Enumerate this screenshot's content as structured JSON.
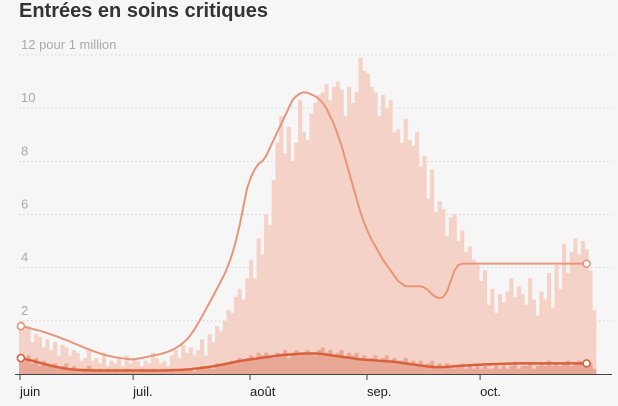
{
  "title": "Entrées en soins critiques",
  "chart_data": {
    "type": "bar",
    "title": "Entrées en soins critiques",
    "ylabel": "pour 1 million",
    "ylim": [
      0,
      12
    ],
    "yticks": [
      {
        "value": 2,
        "label": "2"
      },
      {
        "value": 4,
        "label": "4"
      },
      {
        "value": 6,
        "label": "6"
      },
      {
        "value": 8,
        "label": "8"
      },
      {
        "value": 10,
        "label": "10"
      },
      {
        "value": 12,
        "label": "12 pour 1 million"
      }
    ],
    "xticks": [
      {
        "label": "juin",
        "day": 0
      },
      {
        "label": "juil.",
        "day": 30
      },
      {
        "label": "août",
        "day": 61
      },
      {
        "label": "sep.",
        "day": 92
      },
      {
        "label": "oct.",
        "day": 122
      }
    ],
    "days": 153,
    "series": [
      {
        "name": "",
        "color": "#f5d2c7",
        "values": [
          2.0,
          1.7,
          1.8,
          1.2,
          1.5,
          1.4,
          1.0,
          1.3,
          0.9,
          1.2,
          0.7,
          1.1,
          1.0,
          0.7,
          0.9,
          0.8,
          0.5,
          0.6,
          0.9,
          0.5,
          0.6,
          0.4,
          0.8,
          0.3,
          0.5,
          0.4,
          0.6,
          0.3,
          0.7,
          0.4,
          0.6,
          0.5,
          0.3,
          0.5,
          0.4,
          0.8,
          0.6,
          0.4,
          0.5,
          0.3,
          0.7,
          0.9,
          0.6,
          1.1,
          0.8,
          1.0,
          0.7,
          0.9,
          1.3,
          0.7,
          1.5,
          1.2,
          1.8,
          1.6,
          2.0,
          2.4,
          2.3,
          2.9,
          3.2,
          2.8,
          3.6,
          4.3,
          3.6,
          5.1,
          4.5,
          6.0,
          5.6,
          7.3,
          8.7,
          9.7,
          8.3,
          9.3,
          8.0,
          8.7,
          10.3,
          9.1,
          8.8,
          9.8,
          10.2,
          10.5,
          10.6,
          10.9,
          10.3,
          10.8,
          11.0,
          10.7,
          9.7,
          10.8,
          10.2,
          10.6,
          11.9,
          11.4,
          11.3,
          10.8,
          10.6,
          9.7,
          10.5,
          10.0,
          10.3,
          9.1,
          9.2,
          8.7,
          9.6,
          8.8,
          8.6,
          9.1,
          7.8,
          8.2,
          6.6,
          7.7,
          6.1,
          6.5,
          6.2,
          5.2,
          5.9,
          6.0,
          5.0,
          5.4,
          4.6,
          4.8,
          4.3,
          4.1,
          3.5,
          3.9,
          2.6,
          3.2,
          2.3,
          3.0,
          2.7,
          3.1,
          3.6,
          2.9,
          3.3,
          3.0,
          2.6,
          3.6,
          2.8,
          2.2,
          3.1,
          2.8,
          3.8,
          2.5,
          4.1,
          3.2,
          4.9,
          3.8,
          4.6,
          5.1,
          4.5,
          5.0,
          4.7,
          3.9,
          2.4
        ],
        "trend": [
          1.8,
          1.77,
          1.73,
          1.7,
          1.66,
          1.63,
          1.58,
          1.54,
          1.49,
          1.44,
          1.39,
          1.33,
          1.28,
          1.22,
          1.16,
          1.1,
          1.04,
          0.98,
          0.93,
          0.87,
          0.82,
          0.77,
          0.73,
          0.69,
          0.66,
          0.63,
          0.61,
          0.59,
          0.57,
          0.55,
          0.55,
          0.58,
          0.6,
          0.63,
          0.66,
          0.69,
          0.72,
          0.75,
          0.79,
          0.84,
          0.9,
          0.97,
          1.06,
          1.17,
          1.3,
          1.47,
          1.67,
          1.91,
          2.16,
          2.42,
          2.68,
          2.94,
          3.21,
          3.48,
          3.76,
          4.1,
          4.5,
          5.0,
          5.6,
          6.3,
          7.0,
          7.4,
          7.7,
          7.9,
          8.0,
          8.2,
          8.5,
          8.8,
          9.1,
          9.4,
          9.7,
          10.0,
          10.3,
          10.45,
          10.55,
          10.6,
          10.58,
          10.52,
          10.45,
          10.35,
          10.2,
          10.0,
          9.7,
          9.4,
          9.0,
          8.6,
          8.1,
          7.6,
          7.1,
          6.6,
          6.1,
          5.7,
          5.35,
          5.05,
          4.8,
          4.55,
          4.3,
          4.1,
          3.9,
          3.7,
          3.5,
          3.4,
          3.3,
          3.3,
          3.3,
          3.3,
          3.3,
          3.25,
          3.15,
          3.0,
          2.9,
          2.85,
          2.9,
          3.1,
          3.5,
          3.9,
          4.1,
          4.15,
          4.15,
          4.15,
          4.15,
          4.15,
          4.15,
          4.15,
          4.15,
          4.15,
          4.15,
          4.15,
          4.15,
          4.15,
          4.15,
          4.15,
          4.15,
          4.15,
          4.15,
          4.15,
          4.15,
          4.15,
          4.15,
          4.15,
          4.15,
          4.15,
          4.15,
          4.15,
          4.15,
          4.15,
          4.15,
          4.15,
          4.15,
          4.15,
          4.15,
          4.15,
          4.15,
          4.15,
          4.15,
          4.15
        ]
      },
      {
        "name": "",
        "color": "#e8a896",
        "values": [
          0.6,
          0.5,
          0.7,
          0.4,
          0.6,
          0.3,
          0.5,
          0.4,
          0.3,
          0.4,
          0.2,
          0.3,
          0.4,
          0.2,
          0.3,
          0.2,
          0.1,
          0.2,
          0.3,
          0.2,
          0.1,
          0.2,
          0.1,
          0.2,
          0.1,
          0.2,
          0.1,
          0.1,
          0.2,
          0.1,
          0.1,
          0.1,
          0.2,
          0.1,
          0.1,
          0.2,
          0.1,
          0.1,
          0.2,
          0.1,
          0.2,
          0.1,
          0.1,
          0.2,
          0.2,
          0.2,
          0.1,
          0.2,
          0.3,
          0.2,
          0.3,
          0.2,
          0.4,
          0.3,
          0.4,
          0.4,
          0.5,
          0.5,
          0.6,
          0.5,
          0.6,
          0.7,
          0.6,
          0.8,
          0.7,
          0.8,
          0.7,
          0.6,
          0.8,
          0.7,
          0.9,
          0.6,
          0.8,
          0.9,
          0.7,
          0.8,
          0.9,
          0.8,
          0.7,
          0.9,
          1.0,
          0.8,
          0.9,
          0.7,
          0.8,
          0.9,
          0.6,
          0.8,
          0.7,
          0.8,
          0.6,
          0.7,
          0.5,
          0.6,
          0.7,
          0.5,
          0.6,
          0.7,
          0.5,
          0.6,
          0.4,
          0.5,
          0.6,
          0.4,
          0.5,
          0.4,
          0.5,
          0.3,
          0.4,
          0.5,
          0.3,
          0.4,
          0.3,
          0.4,
          0.3,
          0.2,
          0.3,
          0.4,
          0.2,
          0.3,
          0.2,
          0.3,
          0.2,
          0.3,
          0.2,
          0.2,
          0.3,
          0.2,
          0.3,
          0.2,
          0.3,
          0.4,
          0.2,
          0.3,
          0.3,
          0.4,
          0.2,
          0.3,
          0.4,
          0.3,
          0.5,
          0.3,
          0.4,
          0.3,
          0.4,
          0.5,
          0.3,
          0.4,
          0.5,
          0.4,
          0.3,
          0.4,
          0.2
        ],
        "trend": [
          0.6,
          0.57,
          0.53,
          0.5,
          0.46,
          0.42,
          0.38,
          0.35,
          0.31,
          0.28,
          0.25,
          0.22,
          0.2,
          0.18,
          0.17,
          0.16,
          0.15,
          0.14,
          0.14,
          0.13,
          0.13,
          0.13,
          0.13,
          0.13,
          0.13,
          0.13,
          0.13,
          0.13,
          0.13,
          0.13,
          0.13,
          0.13,
          0.13,
          0.13,
          0.13,
          0.13,
          0.13,
          0.13,
          0.13,
          0.14,
          0.14,
          0.15,
          0.15,
          0.16,
          0.17,
          0.18,
          0.2,
          0.21,
          0.23,
          0.25,
          0.27,
          0.29,
          0.31,
          0.34,
          0.37,
          0.4,
          0.43,
          0.46,
          0.49,
          0.51,
          0.53,
          0.55,
          0.57,
          0.59,
          0.61,
          0.63,
          0.65,
          0.67,
          0.69,
          0.71,
          0.72,
          0.73,
          0.74,
          0.75,
          0.76,
          0.77,
          0.77,
          0.77,
          0.77,
          0.76,
          0.75,
          0.73,
          0.71,
          0.69,
          0.67,
          0.65,
          0.63,
          0.61,
          0.59,
          0.57,
          0.55,
          0.54,
          0.53,
          0.52,
          0.51,
          0.5,
          0.49,
          0.48,
          0.47,
          0.46,
          0.44,
          0.42,
          0.4,
          0.38,
          0.36,
          0.34,
          0.32,
          0.3,
          0.28,
          0.27,
          0.26,
          0.26,
          0.26,
          0.27,
          0.28,
          0.29,
          0.3,
          0.31,
          0.32,
          0.33,
          0.34,
          0.35,
          0.35,
          0.36,
          0.36,
          0.37,
          0.37,
          0.38,
          0.38,
          0.39,
          0.39,
          0.4,
          0.4,
          0.4,
          0.4,
          0.4,
          0.4,
          0.4,
          0.4,
          0.4,
          0.4,
          0.4,
          0.4,
          0.4,
          0.4,
          0.4,
          0.4,
          0.4,
          0.4,
          0.4,
          0.4,
          0.4,
          0.4,
          0.4,
          0.4
        ]
      }
    ],
    "lines": [
      {
        "name": "",
        "series_index": 0,
        "color": "#e8957a",
        "endpoint_day": 0,
        "endpoint_value": 1.8,
        "last_day": 150,
        "last_value": 4.15
      },
      {
        "name": "",
        "series_index": 1,
        "color": "#d9603b",
        "endpoint_day": 0,
        "endpoint_value": 0.6,
        "last_day": 150,
        "last_value": 0.4
      }
    ],
    "grid": true
  }
}
